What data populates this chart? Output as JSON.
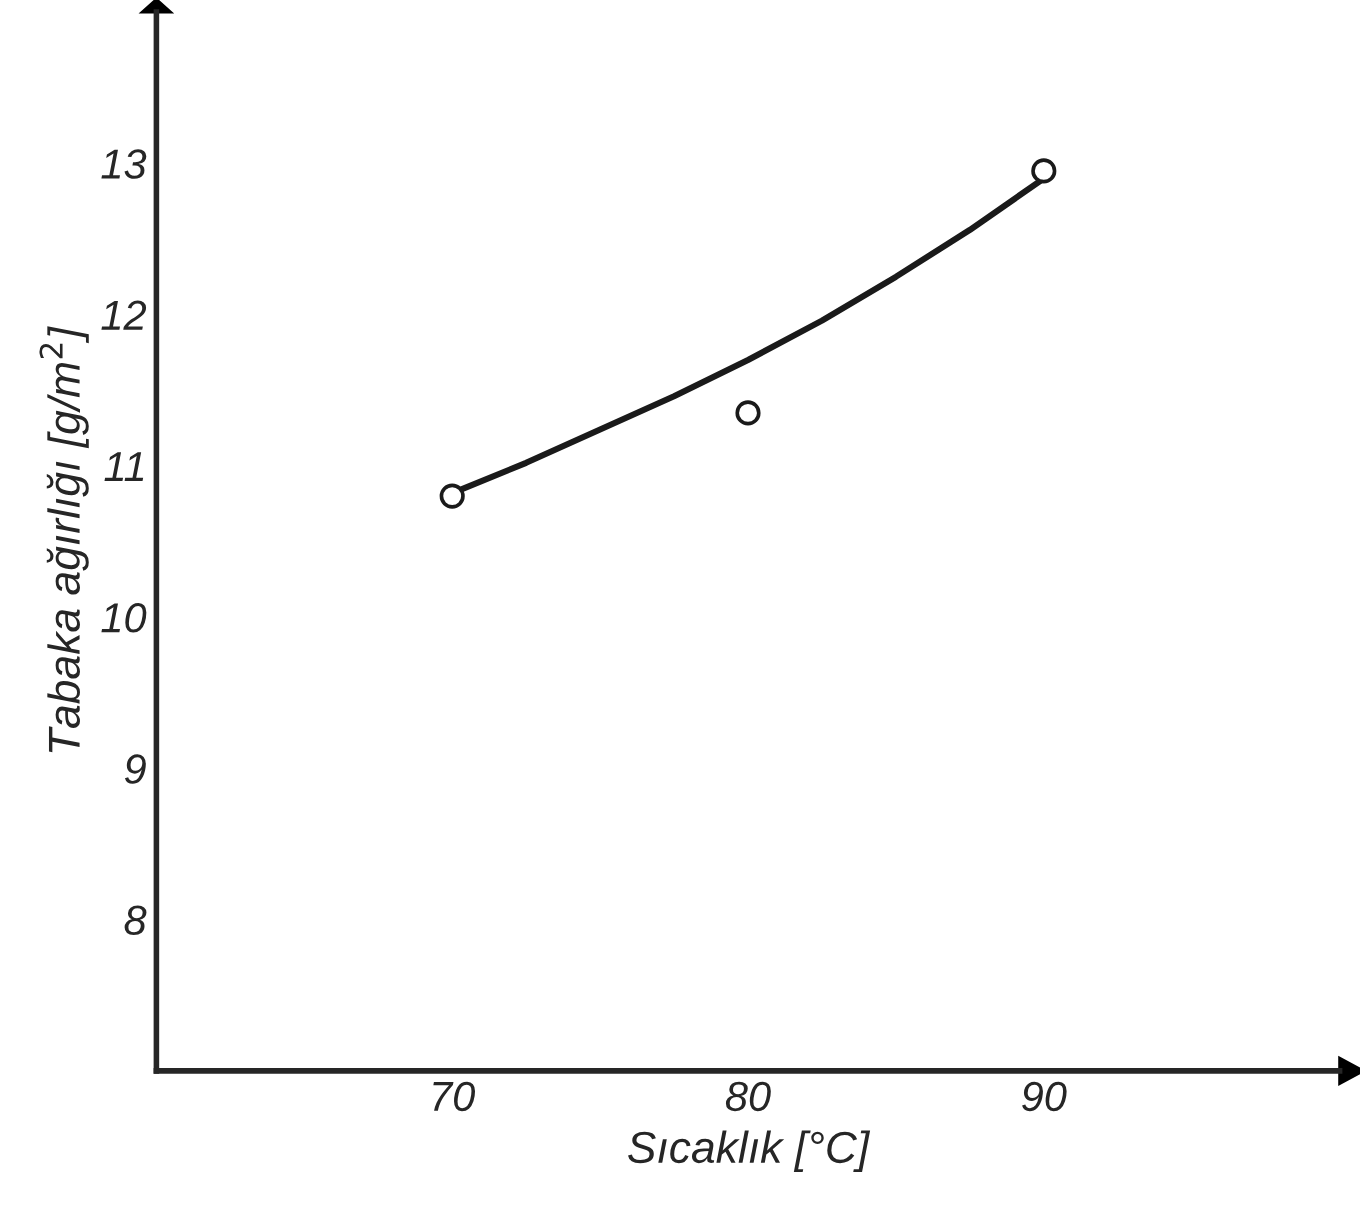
{
  "chart_data": {
    "type": "scatter",
    "xlabel": "Sıcaklık [°C]",
    "ylabel": "Tabaka ağırlığı [g/m$^{2}$]",
    "xlim": [
      60,
      100
    ],
    "ylim": [
      7,
      14
    ],
    "xticks": [
      70,
      80,
      90
    ],
    "yticks": [
      8,
      9,
      10,
      11,
      12,
      13
    ],
    "grid": false,
    "legend": false,
    "series": [
      {
        "color": "#1a1a1a",
        "marker": "circle",
        "x": [
          70,
          80,
          90
        ],
        "values": [
          10.8,
          11.35,
          12.95
        ]
      },
      {
        "type": "line",
        "color": "#1a1a1a",
        "line_style": "solid",
        "x": [
          70,
          72.5,
          75,
          77.5,
          80,
          82.5,
          85,
          87.5,
          90
        ],
        "values": [
          10.82,
          11.02,
          11.24,
          11.46,
          11.7,
          11.96,
          12.25,
          12.56,
          12.9
        ]
      }
    ]
  }
}
